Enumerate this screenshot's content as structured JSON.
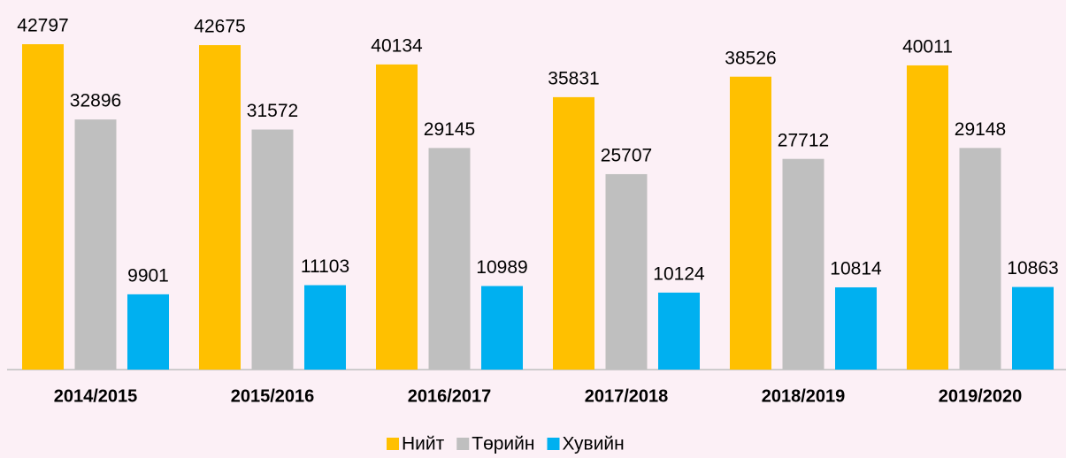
{
  "chart_data": {
    "type": "bar",
    "categories": [
      "2014/2015",
      "2015/2016",
      "2016/2017",
      "2017/2018",
      "2018/2019",
      "2019/2020"
    ],
    "series": [
      {
        "name": "Нийт",
        "color": "#ffc000",
        "values": [
          42797,
          42675,
          40134,
          35831,
          38526,
          40011
        ]
      },
      {
        "name": "Төрийн",
        "color": "#bfbfbf",
        "values": [
          32896,
          31572,
          29145,
          25707,
          27712,
          29148
        ]
      },
      {
        "name": "Хувийн",
        "color": "#00b0f0",
        "values": [
          9901,
          11103,
          10989,
          10124,
          10814,
          10863
        ]
      }
    ],
    "legend": "bottom"
  }
}
